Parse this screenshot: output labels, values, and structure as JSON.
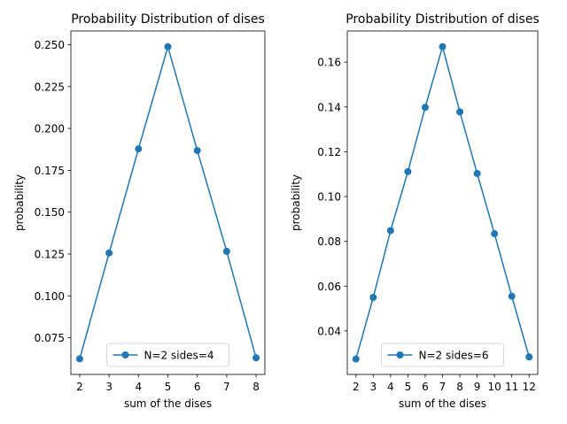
{
  "colors": {
    "series": "#1f77b4",
    "axis": "#000000",
    "legend_edge": "#cccccc"
  },
  "chart_data": [
    {
      "type": "line",
      "title": "Probability Distribution of dises",
      "xlabel": "sum of the dises",
      "ylabel": "probability",
      "x": [
        2,
        3,
        4,
        5,
        6,
        7,
        8
      ],
      "xticks": [
        "2",
        "3",
        "4",
        "5",
        "6",
        "7",
        "8"
      ],
      "xlim": [
        1.7,
        8.3
      ],
      "ylim": [
        0.0531,
        0.2582
      ],
      "yticks": [
        0.075,
        0.1,
        0.125,
        0.15,
        0.175,
        0.2,
        0.225,
        0.25
      ],
      "ytick_labels": [
        "0.075",
        "0.100",
        "0.125",
        "0.150",
        "0.175",
        "0.200",
        "0.225",
        "0.250"
      ],
      "series": [
        {
          "name": "N=2 sides=4",
          "values": [
            0.0624,
            0.1256,
            0.1878,
            0.2488,
            0.1868,
            0.1266,
            0.063
          ]
        }
      ],
      "legend": "lower center",
      "grid": false
    },
    {
      "type": "line",
      "title": "Probability Distribution of dises",
      "xlabel": "sum of the dises",
      "ylabel": "probability",
      "x": [
        2,
        3,
        4,
        5,
        6,
        7,
        8,
        9,
        10,
        11,
        12
      ],
      "xticks": [
        "2",
        "3",
        "4",
        "5",
        "6",
        "7",
        "8",
        "9",
        "10",
        "11",
        "12"
      ],
      "xlim": [
        1.5,
        12.5
      ],
      "ylim": [
        0.0206,
        0.1739
      ],
      "yticks": [
        0.04,
        0.06,
        0.08,
        0.1,
        0.12,
        0.14,
        0.16
      ],
      "ytick_labels": [
        "0.04",
        "0.06",
        "0.08",
        "0.10",
        "0.12",
        "0.14",
        "0.16"
      ],
      "series": [
        {
          "name": "N=2 sides=6",
          "values": [
            0.0275,
            0.055,
            0.0848,
            0.1111,
            0.1398,
            0.1669,
            0.1378,
            0.1103,
            0.0834,
            0.0555,
            0.0284
          ]
        }
      ],
      "legend": "lower center",
      "grid": false
    }
  ]
}
